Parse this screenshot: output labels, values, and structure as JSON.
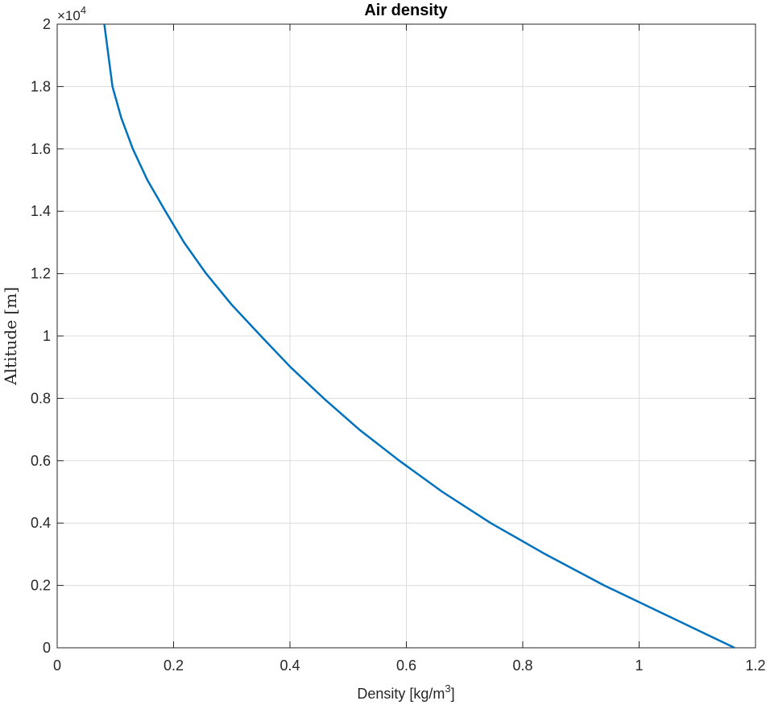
{
  "chart_data": {
    "type": "line",
    "title": "Air density",
    "xlabel": "Density [kg/m",
    "xlabel_sup": "3",
    "xlabel_suffix": "]",
    "ylabel": "Altitude [m]",
    "y_exponent_prefix": "×10",
    "y_exponent_power": "4",
    "xlim": [
      0,
      1.2
    ],
    "ylim": [
      0,
      20000
    ],
    "x_ticks": [
      0,
      0.2,
      0.4,
      0.6,
      0.8,
      1,
      1.2
    ],
    "x_tick_labels": [
      "0",
      "0.2",
      "0.4",
      "0.6",
      "0.8",
      "1",
      "1.2"
    ],
    "y_ticks": [
      0,
      2000,
      4000,
      6000,
      8000,
      10000,
      12000,
      14000,
      16000,
      18000,
      20000
    ],
    "y_tick_labels": [
      "0",
      "0.2",
      "0.4",
      "0.6",
      "0.8",
      "1",
      "1.2",
      "1.4",
      "1.6",
      "1.8",
      "2"
    ],
    "grid": true,
    "line_color": "#0072BD",
    "series": [
      {
        "x": [
          1.164,
          1.052,
          0.94,
          0.839,
          0.745,
          0.662,
          0.588,
          0.519,
          0.458,
          0.401,
          0.35,
          0.3,
          0.256,
          0.218,
          0.186,
          0.155,
          0.13,
          0.11,
          0.095,
          0.081
        ],
        "y": [
          0,
          1000,
          2000,
          3000,
          4000,
          5000,
          6000,
          7000,
          8000,
          9000,
          10000,
          11000,
          12000,
          13000,
          14000,
          15000,
          16000,
          17000,
          18000,
          20000
        ]
      }
    ]
  }
}
